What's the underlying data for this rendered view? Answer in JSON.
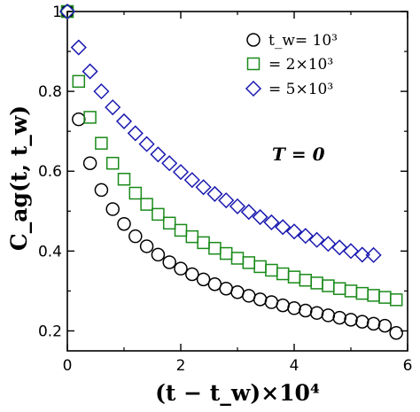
{
  "chart_data": {
    "type": "scatter",
    "title": "",
    "xlabel": "(t − t_w)×10⁴",
    "ylabel": "C_ag(t, t_w)",
    "xlim": [
      0,
      6
    ],
    "ylim": [
      0.15,
      1.0
    ],
    "x_ticks": [
      0,
      2,
      4,
      6
    ],
    "x_tick_labels": [
      "0",
      "2",
      "4",
      "6"
    ],
    "y_ticks": [
      0.2,
      0.4,
      0.6,
      0.8,
      1.0
    ],
    "y_tick_labels": [
      "0.2",
      "0.4",
      "0.6",
      "0.8",
      "1"
    ],
    "grid": false,
    "legend_position": "top-right",
    "legend_label_main": "t_w= 10³",
    "legend_label_rest": [
      "= 2×10³",
      "= 5×10³"
    ],
    "annotation": "T = 0",
    "series": [
      {
        "name": "t_w = 10³",
        "marker": "circle",
        "color": "#000000",
        "x": [
          0,
          0.2,
          0.4,
          0.6,
          0.8,
          1.0,
          1.2,
          1.4,
          1.6,
          1.8,
          2.0,
          2.2,
          2.4,
          2.6,
          2.8,
          3.0,
          3.2,
          3.4,
          3.6,
          3.8,
          4.0,
          4.2,
          4.4,
          4.6,
          4.8,
          5.0,
          5.2,
          5.4,
          5.6,
          5.8
        ],
        "y": [
          1.0,
          0.73,
          0.62,
          0.553,
          0.505,
          0.468,
          0.437,
          0.412,
          0.391,
          0.372,
          0.356,
          0.342,
          0.329,
          0.317,
          0.306,
          0.297,
          0.288,
          0.279,
          0.272,
          0.264,
          0.257,
          0.251,
          0.245,
          0.239,
          0.233,
          0.228,
          0.223,
          0.218,
          0.213,
          0.195
        ]
      },
      {
        "name": "t_w = 2×10³",
        "marker": "square",
        "color": "#1a8a1a",
        "x": [
          0,
          0.2,
          0.4,
          0.6,
          0.8,
          1.0,
          1.2,
          1.4,
          1.6,
          1.8,
          2.0,
          2.2,
          2.4,
          2.6,
          2.8,
          3.0,
          3.2,
          3.4,
          3.6,
          3.8,
          4.0,
          4.2,
          4.4,
          4.6,
          4.8,
          5.0,
          5.2,
          5.4,
          5.6,
          5.8
        ],
        "y": [
          1.0,
          0.825,
          0.735,
          0.67,
          0.62,
          0.58,
          0.545,
          0.517,
          0.492,
          0.47,
          0.452,
          0.436,
          0.421,
          0.407,
          0.394,
          0.382,
          0.371,
          0.361,
          0.352,
          0.343,
          0.335,
          0.327,
          0.32,
          0.313,
          0.306,
          0.3,
          0.294,
          0.289,
          0.284,
          0.278
        ]
      },
      {
        "name": "t_w = 5×10³",
        "marker": "diamond",
        "color": "#1a1ab0",
        "x": [
          0,
          0.2,
          0.4,
          0.6,
          0.8,
          1.0,
          1.2,
          1.4,
          1.6,
          1.8,
          2.0,
          2.2,
          2.4,
          2.6,
          2.8,
          3.0,
          3.2,
          3.4,
          3.6,
          3.8,
          4.0,
          4.2,
          4.4,
          4.6,
          4.8,
          5.0,
          5.2,
          5.4
        ],
        "y": [
          1.0,
          0.91,
          0.85,
          0.8,
          0.76,
          0.725,
          0.695,
          0.668,
          0.642,
          0.62,
          0.598,
          0.578,
          0.56,
          0.543,
          0.527,
          0.512,
          0.498,
          0.485,
          0.472,
          0.46,
          0.449,
          0.438,
          0.428,
          0.418,
          0.409,
          0.4,
          0.391,
          0.39
        ]
      }
    ]
  }
}
